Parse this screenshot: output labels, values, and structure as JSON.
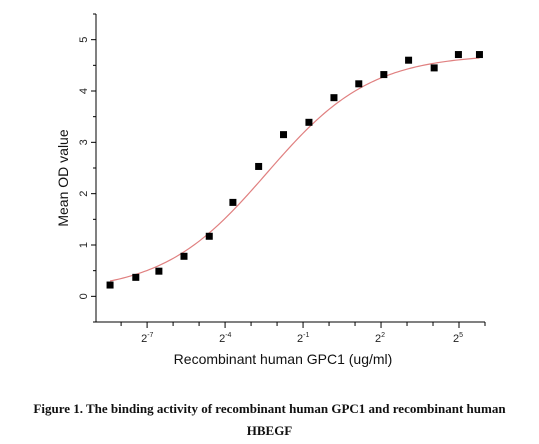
{
  "caption": {
    "line1": "Figure 1. The binding activity of recombinant human GPC1 and recombinant human",
    "line2": "HBEGF"
  },
  "chart_data": {
    "type": "scatter",
    "title": "",
    "xlabel": "Recombinant human  GPC1 (ug/ml)",
    "ylabel": "Mean OD value",
    "x_scale": "log2",
    "xlim": [
      0.002,
      64
    ],
    "ylim": [
      -0.5,
      5.5
    ],
    "x_ticks": [
      {
        "base": "2",
        "exp": "-7",
        "value": 0.0078125
      },
      {
        "base": "2",
        "exp": "-4",
        "value": 0.0625
      },
      {
        "base": "2",
        "exp": "-1",
        "value": 0.5
      },
      {
        "base": "2",
        "exp": "2",
        "value": 4
      },
      {
        "base": "2",
        "exp": "5",
        "value": 32
      }
    ],
    "y_ticks": [
      0,
      1,
      2,
      3,
      4,
      5
    ],
    "series": [
      {
        "style": "points",
        "color": "#000000",
        "x": [
          0.00291,
          0.00578,
          0.0107,
          0.0209,
          0.041,
          0.077,
          0.153,
          0.297,
          0.585,
          1.14,
          2.21,
          4.31,
          8.34,
          16.5,
          31.5,
          55.2
        ],
        "y": [
          0.22,
          0.37,
          0.49,
          0.78,
          1.17,
          1.83,
          2.53,
          3.15,
          3.39,
          3.87,
          4.14,
          4.32,
          4.6,
          4.45,
          4.71,
          4.71
        ]
      }
    ],
    "fit_curve": {
      "color": "#e08080",
      "bottom": 0.08,
      "top": 4.72,
      "ec50": 0.19,
      "hill": 0.72
    },
    "grid": false,
    "legend": "none"
  }
}
